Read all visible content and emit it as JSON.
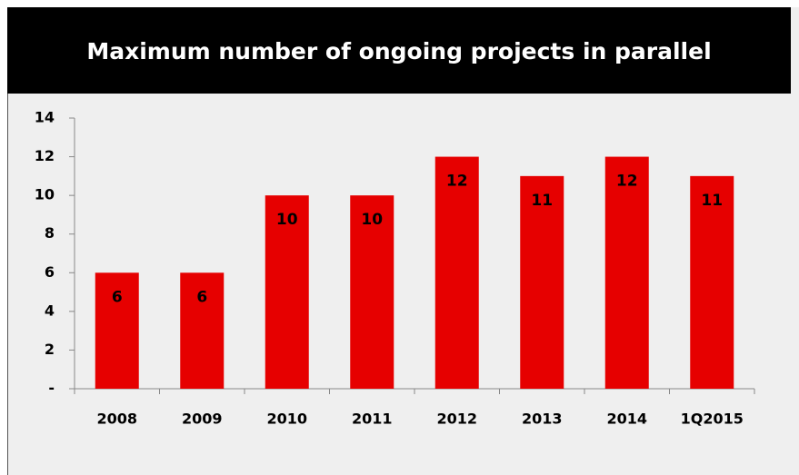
{
  "chart_data": {
    "type": "bar",
    "title": "Maximum number of ongoing projects in parallel",
    "categories": [
      "2008",
      "2009",
      "2010",
      "2011",
      "2012",
      "2013",
      "2014",
      "1Q2015"
    ],
    "values": [
      6,
      6,
      10,
      10,
      12,
      11,
      12,
      11
    ],
    "color": "#e60000",
    "ylim": [
      0,
      14
    ],
    "yticks": [
      {
        "value": 0,
        "label": "-"
      },
      2,
      4,
      6,
      8,
      10,
      12,
      14
    ],
    "grid": false
  }
}
